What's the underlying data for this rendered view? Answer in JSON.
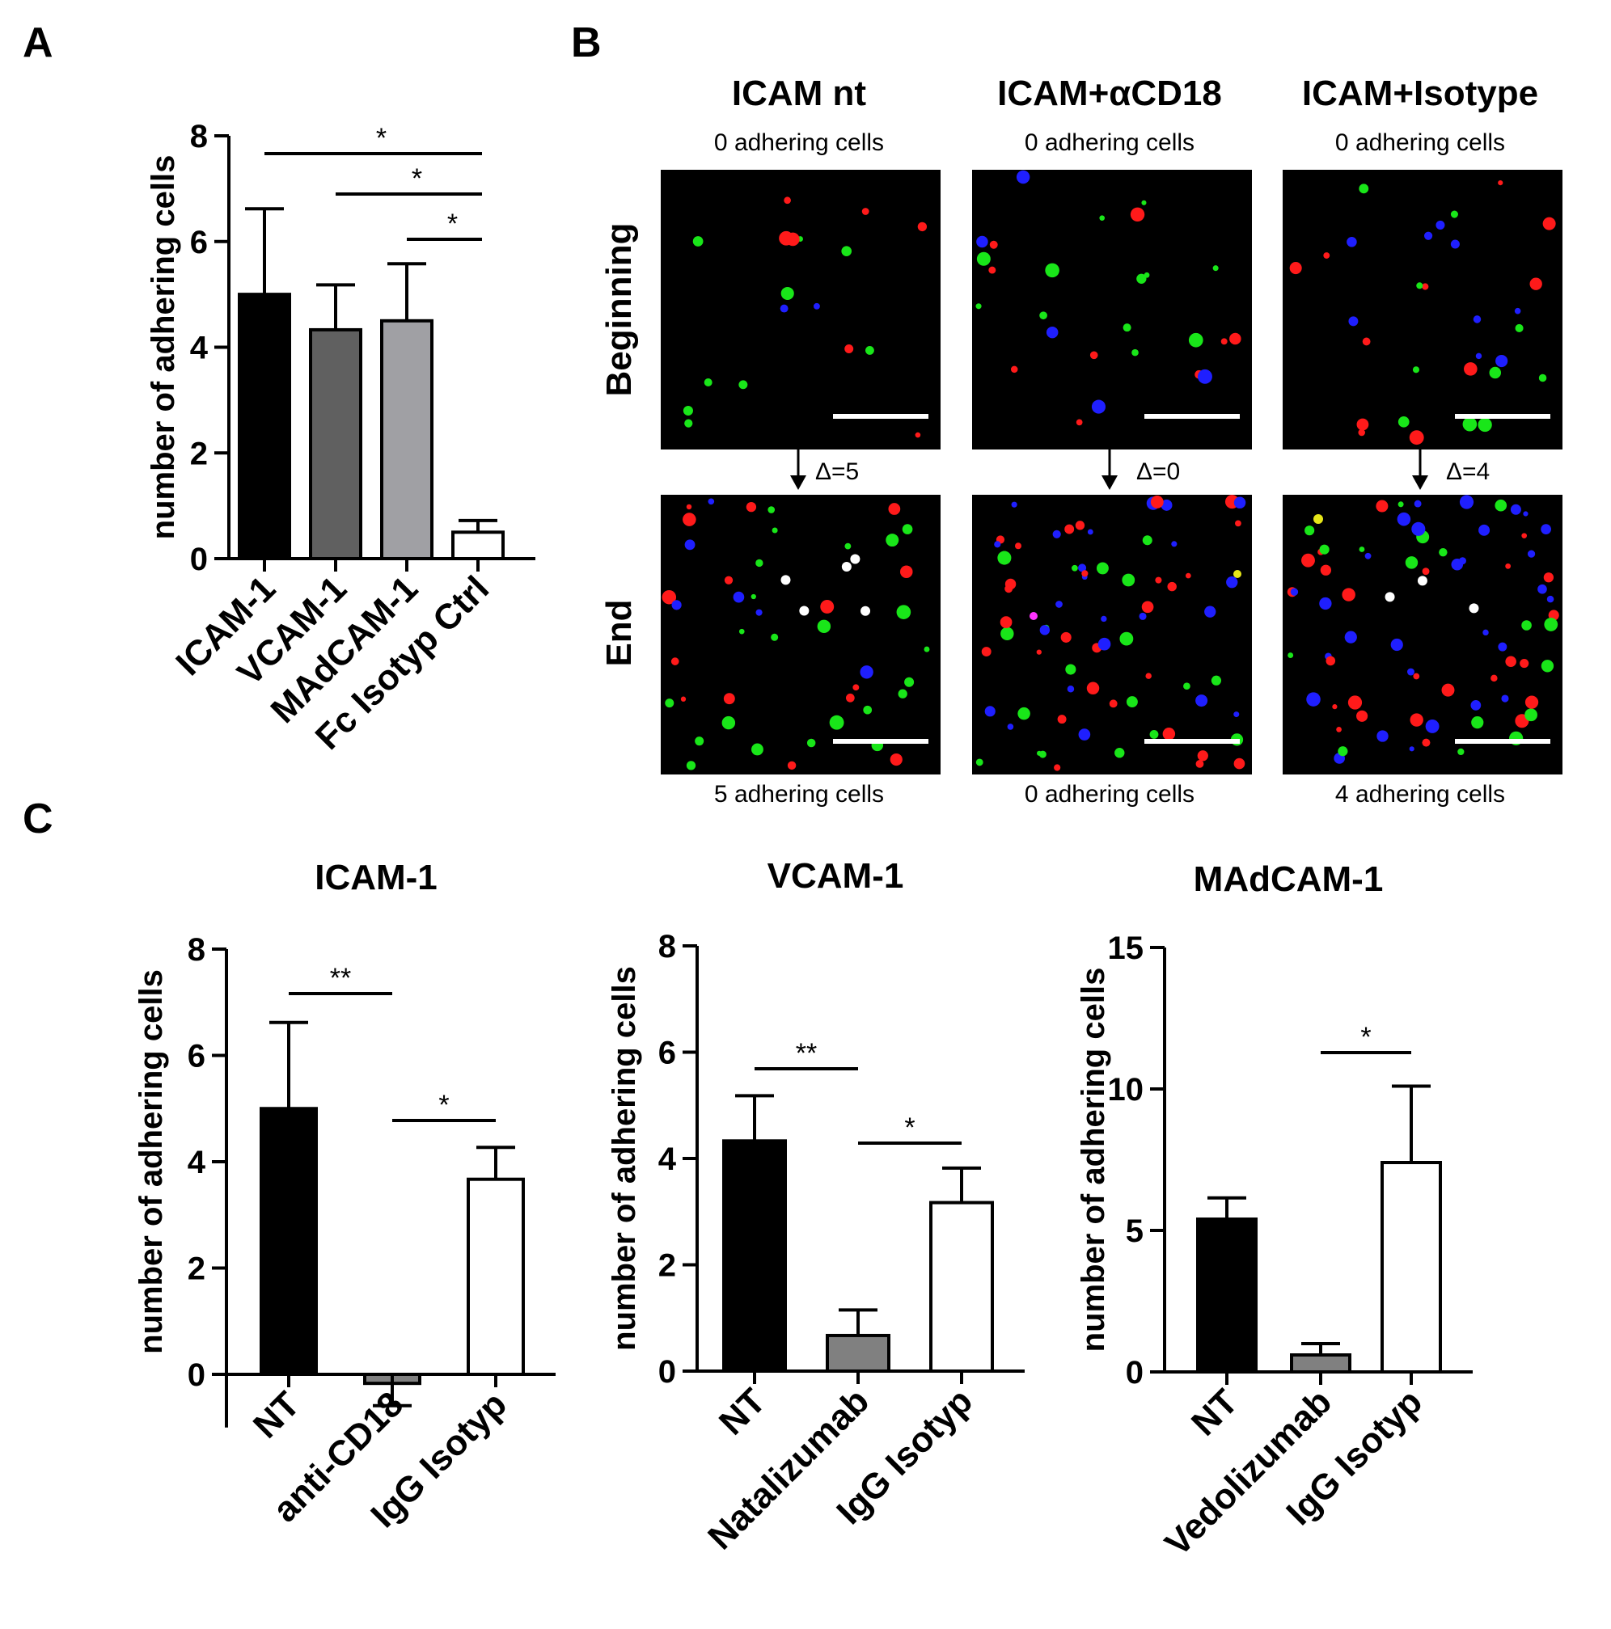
{
  "panel_letters": [
    "A",
    "B",
    "C"
  ],
  "chart_data": [
    {
      "type": "bar",
      "panel": "A",
      "title": "",
      "ylabel": "number of adhering cells",
      "ylim": [
        0,
        8
      ],
      "yticks": [
        "0",
        "2",
        "4",
        "6",
        "8"
      ],
      "categories": [
        "ICAM-1",
        "VCAM-1",
        "MAdCAM-1",
        "Fc Isotyp Ctrl"
      ],
      "values": [
        5.0,
        4.33,
        4.5,
        0.5
      ],
      "errors": [
        1.62,
        0.85,
        1.08,
        0.22
      ],
      "colors": [
        "#000000",
        "#606060",
        "#a0a0a4",
        "#ffffff"
      ],
      "significance": [
        {
          "from": 0,
          "to": 3,
          "label": "*"
        },
        {
          "from": 1,
          "to": 3,
          "label": "*"
        },
        {
          "from": 2,
          "to": 3,
          "label": "*"
        }
      ]
    },
    {
      "type": "bar",
      "panel": "C",
      "title": "ICAM-1",
      "ylabel": "number of adhering cells",
      "ylim": [
        -1,
        8
      ],
      "yticks": [
        "0",
        "2",
        "4",
        "6",
        "8"
      ],
      "categories": [
        "NT",
        "anti-CD18",
        "IgG Isotyp"
      ],
      "values": [
        5.0,
        -0.17,
        3.67
      ],
      "errors": [
        1.62,
        0.42,
        0.6
      ],
      "colors": [
        "#000000",
        "#808080",
        "#ffffff"
      ],
      "significance": [
        {
          "from": 0,
          "to": 1,
          "label": "**"
        },
        {
          "from": 1,
          "to": 2,
          "label": "*"
        }
      ]
    },
    {
      "type": "bar",
      "panel": "C",
      "title": "VCAM-1",
      "ylabel": "number of adhering cells",
      "ylim": [
        0,
        8
      ],
      "yticks": [
        "0",
        "2",
        "4",
        "6",
        "8"
      ],
      "categories": [
        "NT",
        "Natalizumab",
        "IgG Isotyp"
      ],
      "values": [
        4.33,
        0.67,
        3.17
      ],
      "errors": [
        0.85,
        0.48,
        0.65
      ],
      "colors": [
        "#000000",
        "#808080",
        "#ffffff"
      ],
      "significance": [
        {
          "from": 0,
          "to": 1,
          "label": "**"
        },
        {
          "from": 1,
          "to": 2,
          "label": "*"
        }
      ]
    },
    {
      "type": "bar",
      "panel": "C",
      "title": "MAdCAM-1",
      "ylabel": "number of adhering cells",
      "ylim": [
        0,
        15
      ],
      "yticks": [
        "0",
        "5",
        "10",
        "15"
      ],
      "categories": [
        "NT",
        "Vedolizumab",
        "IgG Isotyp"
      ],
      "values": [
        5.4,
        0.6,
        7.4
      ],
      "errors": [
        0.75,
        0.4,
        2.7
      ],
      "colors": [
        "#000000",
        "#808080",
        "#ffffff"
      ],
      "significance": [
        {
          "from": 1,
          "to": 2,
          "label": "*"
        }
      ]
    }
  ],
  "micrographs": {
    "columns": [
      {
        "title": "ICAM nt",
        "start_label": "0 adhering cells",
        "delta": "Δ=5",
        "end_label": "5 adhering cells"
      },
      {
        "title": "ICAM+αCD18",
        "start_label": "0 adhering cells",
        "delta": "Δ=0",
        "end_label": "0 adhering cells"
      },
      {
        "title": "ICAM+Isotype",
        "start_label": "0 adhering cells",
        "delta": "Δ=4",
        "end_label": "4 adhering cells"
      }
    ],
    "rows": [
      "Beginning",
      "End"
    ],
    "dot_colors": {
      "red": "#ff1a1a",
      "green": "#19e619",
      "blue": "#1f1fff",
      "white": "#ffffff",
      "yellow": "#e6e619",
      "magenta": "#ff33ff"
    }
  }
}
